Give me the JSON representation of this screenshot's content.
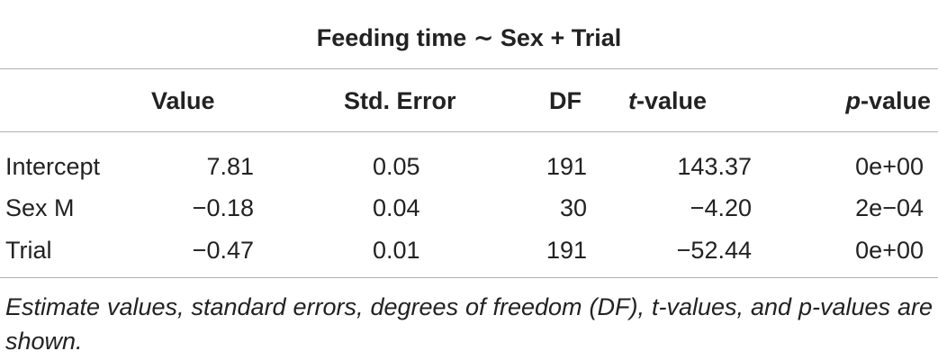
{
  "table": {
    "title": "Feeding time ∼ Sex + Trial",
    "headers": {
      "value": "Value",
      "std_error": "Std. Error",
      "df": "DF",
      "t_value_prefix": "t",
      "t_value_suffix": "-value",
      "p_value_prefix": "p",
      "p_value_suffix": "-value"
    },
    "rows": [
      {
        "label": "Intercept",
        "value": "7.81",
        "std_error": "0.05",
        "df": "191",
        "t_value": "143.37",
        "p_value": "0e+00"
      },
      {
        "label": "Sex M",
        "value": "−0.18",
        "std_error": "0.04",
        "df": "30",
        "t_value": "−4.20",
        "p_value": "2e−04"
      },
      {
        "label": "Trial",
        "value": "−0.47",
        "std_error": "0.01",
        "df": "191",
        "t_value": "−52.44",
        "p_value": "0e+00"
      }
    ],
    "footnote": "Estimate values, standard errors, degrees of freedom (DF), t-values, and p-values are shown."
  }
}
